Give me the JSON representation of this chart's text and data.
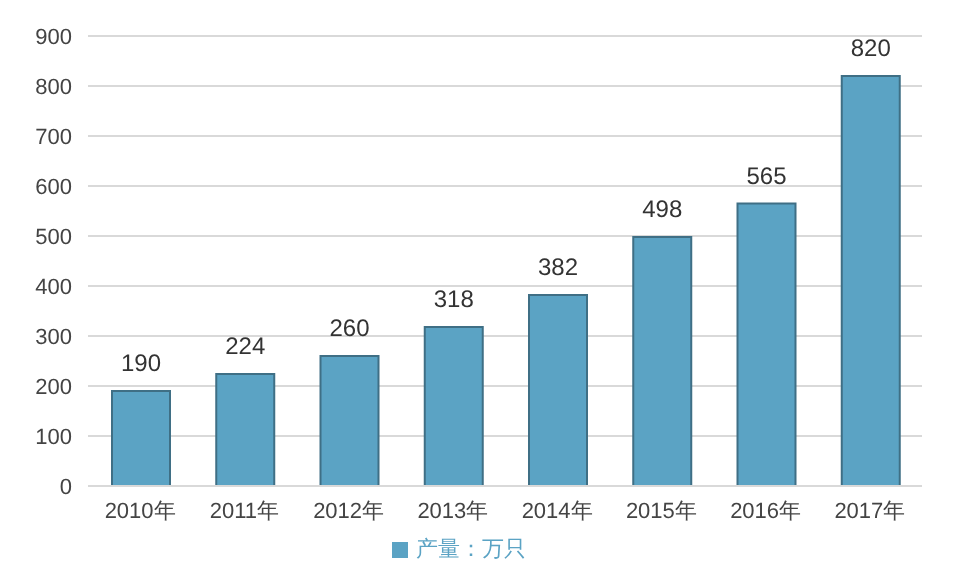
{
  "chart_data": {
    "type": "bar",
    "categories": [
      "2010年",
      "2011年",
      "2012年",
      "2013年",
      "2014年",
      "2015年",
      "2016年",
      "2017年"
    ],
    "series": [
      {
        "name": "产量：万只",
        "color": "#5ba3c4",
        "values": [
          190,
          224,
          260,
          318,
          382,
          498,
          565,
          820
        ]
      }
    ],
    "ylim": [
      0,
      900
    ],
    "yticks": [
      0,
      100,
      200,
      300,
      400,
      500,
      600,
      700,
      800,
      900
    ],
    "grid": "y",
    "legend": "bottom",
    "data_labels": true
  }
}
